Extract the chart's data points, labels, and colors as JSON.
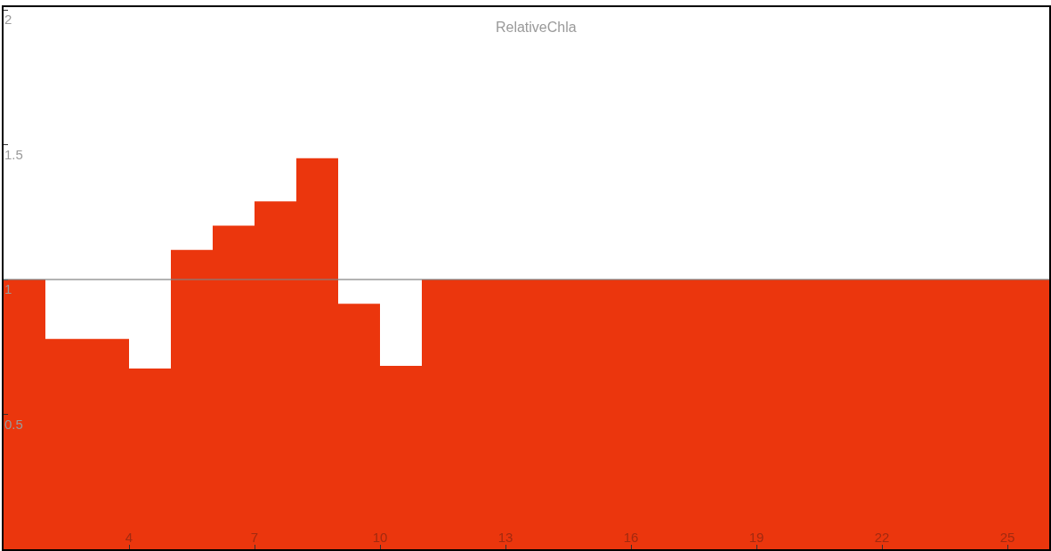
{
  "chart_data": {
    "type": "area",
    "title": "RelativeChla",
    "x": [
      1,
      2,
      3,
      4,
      5,
      6,
      7,
      8,
      9,
      10,
      11,
      12,
      13,
      14,
      15,
      16,
      17,
      18,
      19,
      20,
      21,
      22,
      23,
      24,
      25,
      26
    ],
    "series": [
      {
        "color": "#eb360d",
        "values": [
          1.0,
          0.78,
          0.78,
          0.67,
          1.11,
          1.2,
          1.29,
          1.45,
          0.91,
          0.68,
          1.0,
          1.0,
          1.0,
          1.0,
          1.0,
          1.0,
          1.0,
          1.0,
          1.0,
          1.0,
          1.0,
          1.0,
          1.0,
          1.0,
          1.0,
          1.0
        ]
      }
    ],
    "xlim": [
      1,
      26
    ],
    "xticks": [
      {
        "value": 1,
        "label": null
      },
      4,
      7,
      10,
      13,
      16,
      19,
      22,
      25
    ],
    "ylim": [
      0,
      2.01
    ],
    "yticks": [
      0.5,
      1,
      1.5,
      2
    ],
    "ref_lines": [
      {
        "axis": "y",
        "value": 1,
        "color": "#808080"
      }
    ]
  }
}
